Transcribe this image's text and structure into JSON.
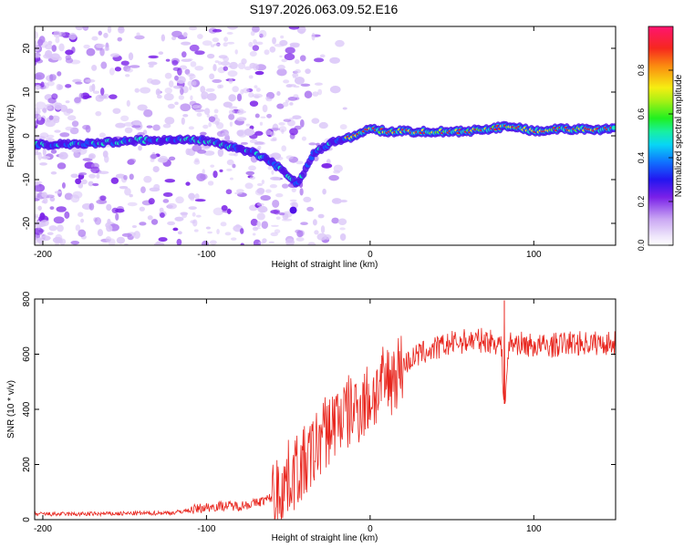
{
  "figure": {
    "title": "S197.2026.063.09.52.E16"
  },
  "chart_data": [
    {
      "type": "heatmap",
      "title": "S197.2026.063.09.52.E16",
      "xlabel": "Height of straight line (km)",
      "ylabel": "Frequency (Hz)",
      "xlim": [
        -205,
        150
      ],
      "ylim": [
        -25,
        25
      ],
      "xticks": [
        -200,
        -100,
        0,
        100
      ],
      "yticks": [
        -20,
        -10,
        0,
        10,
        20
      ],
      "colorbar": {
        "label": "Normalized spectral amplitude",
        "range": [
          0,
          1
        ],
        "ticks": [
          "0.0",
          "0.2",
          "0.4",
          "0.6",
          "0.8"
        ]
      },
      "ridge_frequency_hz": {
        "x": [
          -205,
          -180,
          -160,
          -140,
          -120,
          -100,
          -90,
          -80,
          -70,
          -60,
          -50,
          -45,
          -40,
          -35,
          -30,
          -20,
          -10,
          0,
          10,
          20,
          40,
          60,
          80,
          90,
          100,
          110,
          120,
          150
        ],
        "y": [
          -2,
          -2,
          -1.5,
          -1,
          -1,
          -1,
          -2,
          -3,
          -4,
          -6,
          -9,
          -11,
          -8,
          -4,
          -3,
          -1,
          0,
          1.5,
          1,
          1,
          1,
          1,
          2,
          2,
          1,
          1.5,
          1.5,
          1.5
        ]
      }
    },
    {
      "type": "line",
      "xlabel": "Height of straight line (km)",
      "ylabel": "SNR (10 * v/v)",
      "xlim": [
        -205,
        150
      ],
      "ylim": [
        0,
        800
      ],
      "xticks": [
        -200,
        -100,
        0,
        100
      ],
      "yticks": [
        0,
        200,
        400,
        600,
        800
      ],
      "series": [
        {
          "name": "SNR",
          "color": "#e8251d",
          "x": [
            -205,
            -180,
            -150,
            -120,
            -110,
            -100,
            -90,
            -80,
            -70,
            -60,
            -55,
            -50,
            -45,
            -40,
            -35,
            -30,
            -25,
            -20,
            -15,
            -10,
            -5,
            0,
            5,
            10,
            15,
            20,
            25,
            30,
            40,
            50,
            60,
            70,
            80,
            82,
            85,
            90,
            100,
            110,
            120,
            130,
            140,
            150
          ],
          "y": [
            20,
            20,
            22,
            25,
            35,
            45,
            50,
            50,
            60,
            80,
            110,
            150,
            180,
            200,
            240,
            300,
            330,
            370,
            380,
            400,
            420,
            440,
            470,
            500,
            530,
            560,
            580,
            600,
            620,
            640,
            650,
            650,
            640,
            420,
            640,
            640,
            630,
            630,
            640,
            640,
            640,
            640
          ]
        }
      ],
      "annotations": [
        {
          "x": 82,
          "y": 795,
          "kind": "spike-max"
        },
        {
          "x": 82,
          "y": 420,
          "kind": "spike-min"
        }
      ]
    }
  ],
  "colors": {
    "line": "#e8251d",
    "axis": "#000000",
    "background": "#ffffff"
  }
}
